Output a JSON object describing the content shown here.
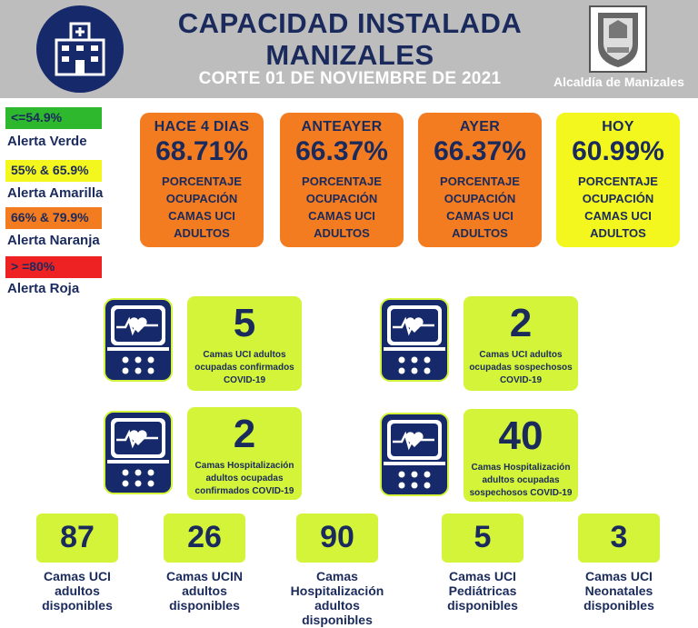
{
  "header": {
    "title_line1": "CAPACIDAD INSTALADA",
    "title_line2": "MANIZALES",
    "subtitle": "CORTE 01 DE NOVIEMBRE  DE 2021",
    "org": "Alcaldía de Manizales",
    "left_icon": "hospital-icon",
    "right_icon": "coat-of-arms-icon"
  },
  "legend": [
    {
      "range": "<=54.9%",
      "label": "Alerta Verde",
      "color": "#2eb82e"
    },
    {
      "range": "55% & 65.9%",
      "label": "Alerta Amarilla",
      "color": "#f4f71e"
    },
    {
      "range": "66% & 79.9%",
      "label": "Alerta Naranja",
      "color": "#f47c20"
    },
    {
      "range": "> =80%",
      "label": "Alerta Roja",
      "color": "#ee2222"
    }
  ],
  "occupancy": [
    {
      "caption": "HACE 4 DIAS",
      "value": "68.71%",
      "desc1": "PORCENTAJE",
      "desc2": "OCUPACIÓN",
      "desc3": "CAMAS UCI",
      "desc4": "ADULTOS",
      "color": "#f47c20"
    },
    {
      "caption": "ANTEAYER",
      "value": "66.37%",
      "desc1": "PORCENTAJE",
      "desc2": "OCUPACIÓN",
      "desc3": "CAMAS UCI",
      "desc4": "ADULTOS",
      "color": "#f47c20"
    },
    {
      "caption": "AYER",
      "value": "66.37%",
      "desc1": "PORCENTAJE",
      "desc2": "OCUPACIÓN",
      "desc3": "CAMAS UCI",
      "desc4": "ADULTOS",
      "color": "#f47c20"
    },
    {
      "caption": "HOY",
      "value": "60.99%",
      "desc1": "PORCENTAJE",
      "desc2": "OCUPACIÓN",
      "desc3": "CAMAS UCI",
      "desc4": "ADULTOS",
      "color": "#f4f71e"
    }
  ],
  "monitors": [
    {
      "value": "5",
      "line1": "Camas UCI adultos",
      "line2": "ocupadas confirmados",
      "line3": "COVID-19",
      "icon": "heart-monitor-icon"
    },
    {
      "value": "2",
      "line1": "Camas UCI adultos",
      "line2": "ocupadas sospechosos",
      "line3": "COVID-19",
      "icon": "heart-monitor-icon"
    },
    {
      "value": "2",
      "line1": "Camas  Hospitalización",
      "line2": "adultos ocupadas",
      "line3": "confirmados COVID-19",
      "icon": "heart-monitor-icon"
    },
    {
      "value": "40",
      "line1": "Camas  Hospitalización",
      "line2": "adultos ocupadas",
      "line3": "sospechosos COVID-19",
      "icon": "heart-monitor-icon"
    }
  ],
  "available": [
    {
      "value": "87",
      "line1": "Camas UCI",
      "line2": "adultos",
      "line3": "disponibles",
      "line4": ""
    },
    {
      "value": "26",
      "line1": "Camas UCIN",
      "line2": "adultos",
      "line3": "disponibles",
      "line4": ""
    },
    {
      "value": "90",
      "line1": "Camas",
      "line2": "Hospitalización",
      "line3": "adultos",
      "line4": "disponibles"
    },
    {
      "value": "5",
      "line1": "Camas  UCI",
      "line2": "Pediátricas",
      "line3": "disponibles",
      "line4": ""
    },
    {
      "value": "3",
      "line1": "Camas  UCI",
      "line2": "Neonatales",
      "line3": "disponibles",
      "line4": ""
    }
  ]
}
